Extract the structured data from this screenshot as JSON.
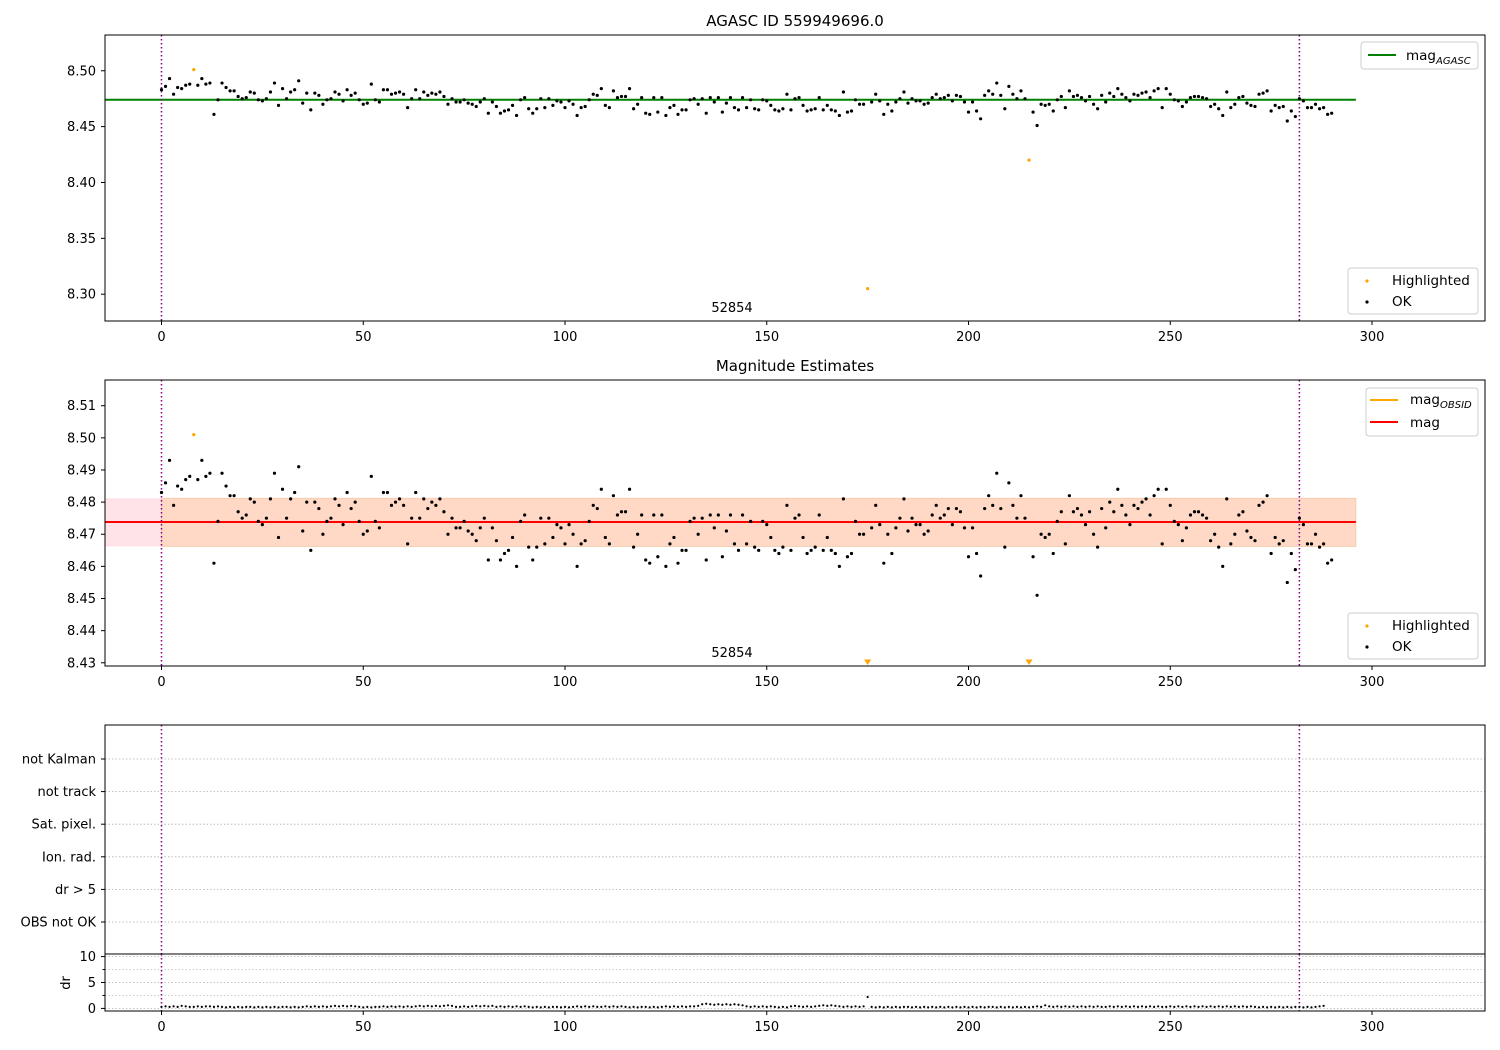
{
  "colors": {
    "ok": "#000000",
    "highlighted": "#ffa500",
    "agasc_line": "#008000",
    "mag_line": "#ff0000",
    "obsid_line": "#ffa500",
    "band_fill": "#ffc0cb",
    "band_inner": "#ffd6c0",
    "edge_line": "#800080",
    "grid": "#b0b0b0"
  },
  "chart_data": [
    {
      "type": "scatter",
      "title": "AGASC ID 559949696.0",
      "annotation": "52854",
      "xlim": [
        -14,
        328
      ],
      "ylim": [
        8.276,
        8.532
      ],
      "xticks": [
        "0",
        "50",
        "100",
        "150",
        "200",
        "250",
        "300"
      ],
      "yticks": [
        "8.30",
        "8.35",
        "8.40",
        "8.45",
        "8.50"
      ],
      "ref_line": {
        "name": "mag",
        "subscript": "AGASC",
        "y": 8.474,
        "x_range": [
          -14,
          296
        ]
      },
      "vertical_lines": [
        0,
        282
      ],
      "legend_top": [
        {
          "label": "mag",
          "subscript": "AGASC"
        }
      ],
      "legend_bottom": [
        {
          "label": "Highlighted"
        },
        {
          "label": "OK"
        }
      ],
      "highlighted": [
        {
          "x": 8,
          "y": 8.501
        },
        {
          "x": 175,
          "y": 8.305
        },
        {
          "x": 215,
          "y": 8.42
        }
      ],
      "series": [
        {
          "name": "OK",
          "y_from_shared": true
        }
      ]
    },
    {
      "type": "scatter",
      "title": "Magnitude Estimates",
      "annotation": "52854",
      "xlim": [
        -14,
        328
      ],
      "ylim": [
        8.429,
        8.518
      ],
      "xticks": [
        "0",
        "50",
        "100",
        "150",
        "200",
        "250",
        "300"
      ],
      "yticks": [
        "8.43",
        "8.44",
        "8.45",
        "8.46",
        "8.47",
        "8.48",
        "8.49",
        "8.50",
        "8.51"
      ],
      "mag_line": {
        "name": "mag",
        "y": 8.4738,
        "band": [
          8.4662,
          8.4812
        ],
        "x_range": [
          -14,
          296
        ]
      },
      "obsid_band": {
        "name": "mag",
        "subscript": "OBSID",
        "band": [
          8.4662,
          8.4812
        ],
        "x_range": [
          0,
          296
        ]
      },
      "vertical_lines": [
        0,
        282
      ],
      "legend_top": [
        {
          "label": "mag",
          "subscript": "OBSID"
        },
        {
          "label": "mag"
        }
      ],
      "legend_bottom": [
        {
          "label": "Highlighted"
        },
        {
          "label": "OK"
        }
      ],
      "highlighted": [
        {
          "x": 8,
          "y": 8.501
        }
      ],
      "out_of_range_markers": [
        175,
        215
      ],
      "series": [
        {
          "name": "OK",
          "y_from_shared": true
        }
      ]
    },
    {
      "type": "scatter",
      "title": "",
      "xlim": [
        -14,
        328
      ],
      "categories": [
        "OBS not OK",
        "dr > 5",
        "Ion. rad.",
        "Sat. pixel.",
        "not track",
        "not Kalman"
      ],
      "vertical_lines": [
        0,
        282
      ],
      "flagged": []
    },
    {
      "type": "scatter",
      "title": "",
      "ylabel": "dr",
      "xlim": [
        -14,
        328
      ],
      "ylim": [
        -0.5,
        10.5
      ],
      "xticks": [
        "0",
        "50",
        "100",
        "150",
        "200",
        "250",
        "300"
      ],
      "yticks": [
        "0",
        "5",
        "10"
      ],
      "vertical_lines": [
        0,
        282
      ],
      "series": [
        {
          "name": "dr",
          "y_from_shared": true
        }
      ]
    }
  ],
  "shared_series": {
    "mag_ok": [
      8.483,
      8.486,
      8.493,
      8.479,
      8.485,
      8.484,
      8.487,
      8.488,
      8.501,
      8.487,
      8.493,
      8.488,
      8.489,
      8.461,
      8.474,
      8.489,
      8.485,
      8.482,
      8.482,
      8.477,
      8.475,
      8.476,
      8.481,
      8.48,
      8.474,
      8.473,
      8.475,
      8.481,
      8.489,
      8.469,
      8.484,
      8.475,
      8.481,
      8.483,
      8.491,
      8.471,
      8.48,
      8.465,
      8.48,
      8.478,
      8.47,
      8.474,
      8.475,
      8.481,
      8.479,
      8.473,
      8.483,
      8.478,
      8.48,
      8.474,
      8.47,
      8.471,
      8.488,
      8.474,
      8.472,
      8.483,
      8.483,
      8.479,
      8.48,
      8.481,
      8.479,
      8.467,
      8.475,
      8.483,
      8.475,
      8.481,
      8.478,
      8.48,
      8.479,
      8.481,
      8.477,
      8.47,
      8.475,
      8.472,
      8.472,
      8.474,
      8.471,
      8.47,
      8.468,
      8.472,
      8.475,
      8.462,
      8.472,
      8.468,
      8.462,
      8.464,
      8.465,
      8.469,
      8.46,
      8.474,
      8.476,
      8.466,
      8.462,
      8.466,
      8.475,
      8.467,
      8.475,
      8.469,
      8.473,
      8.472,
      8.467,
      8.473,
      8.47,
      8.46,
      8.467,
      8.468,
      8.474,
      8.479,
      8.478,
      8.484,
      8.469,
      8.467,
      8.482,
      8.476,
      8.477,
      8.477,
      8.484,
      8.466,
      8.47,
      8.476,
      8.462,
      8.461,
      8.476,
      8.463,
      8.476,
      8.46,
      8.467,
      8.469,
      8.461,
      8.465,
      8.465,
      8.474,
      8.475,
      8.47,
      8.475,
      8.462,
      8.476,
      8.472,
      8.476,
      8.463,
      8.471,
      8.476,
      8.467,
      8.465,
      8.476,
      8.467,
      8.474,
      8.466,
      8.465,
      8.474,
      8.473,
      8.469,
      8.465,
      8.464,
      8.466,
      8.479,
      8.465,
      8.475,
      8.476,
      8.469,
      8.464,
      8.465,
      8.466,
      8.476,
      8.465,
      8.469,
      8.465,
      8.464,
      8.46,
      8.481,
      8.463,
      8.464,
      8.474,
      8.47,
      8.47,
      8.474,
      8.472,
      8.479,
      8.473,
      8.461,
      8.47,
      8.464,
      8.472,
      8.475,
      8.481,
      8.471,
      8.475,
      8.473,
      8.473,
      8.47,
      8.471,
      8.476,
      8.479,
      8.475,
      8.476,
      8.478,
      8.473,
      8.478,
      8.477,
      8.472,
      8.463,
      8.472,
      8.464,
      8.457,
      8.478,
      8.482,
      8.479,
      8.489,
      8.478,
      8.466,
      8.486,
      8.479,
      8.475,
      8.482,
      8.475,
      8.474,
      8.463,
      8.451,
      8.47,
      8.469,
      8.47,
      8.464,
      8.474,
      8.477,
      8.467,
      8.482,
      8.477,
      8.478,
      8.476,
      8.473,
      8.477,
      8.47,
      8.466,
      8.478,
      8.472,
      8.48,
      8.477,
      8.484,
      8.479,
      8.476,
      8.473,
      8.479,
      8.478,
      8.48,
      8.481,
      8.476,
      8.482,
      8.484,
      8.467,
      8.484,
      8.479,
      8.474,
      8.473,
      8.468,
      8.472,
      8.476,
      8.477,
      8.477,
      8.476,
      8.475,
      8.468,
      8.47,
      8.466,
      8.46,
      8.481,
      8.467,
      8.47,
      8.476,
      8.477,
      8.471,
      8.469,
      8.468,
      8.479,
      8.48,
      8.482,
      8.464,
      8.469,
      8.467,
      8.468,
      8.455,
      8.464,
      8.459,
      8.475,
      8.473,
      8.467,
      8.467,
      8.47,
      8.466,
      8.467,
      8.461,
      8.462
    ],
    "dr": [
      0.3,
      0.4,
      0.3,
      0.4,
      0.3,
      0.5,
      0.4,
      0.3,
      0.3,
      0.4,
      0.3,
      0.4,
      0.4,
      0.3,
      0.4,
      0.3,
      0.2,
      0.3,
      0.2,
      0.3,
      0.2,
      0.3,
      0.3,
      0.2,
      0.3,
      0.2,
      0.3,
      0.2,
      0.3,
      0.2,
      0.3,
      0.3,
      0.2,
      0.3,
      0.2,
      0.3,
      0.4,
      0.3,
      0.4,
      0.3,
      0.4,
      0.3,
      0.4,
      0.5,
      0.4,
      0.5,
      0.4,
      0.5,
      0.4,
      0.3,
      0.2,
      0.3,
      0.2,
      0.3,
      0.3,
      0.4,
      0.3,
      0.4,
      0.3,
      0.4,
      0.3,
      0.4,
      0.3,
      0.4,
      0.5,
      0.4,
      0.5,
      0.4,
      0.5,
      0.4,
      0.5,
      0.6,
      0.5,
      0.3,
      0.3,
      0.4,
      0.3,
      0.4,
      0.5,
      0.4,
      0.5,
      0.4,
      0.5,
      0.3,
      0.4,
      0.3,
      0.4,
      0.3,
      0.4,
      0.3,
      0.4,
      0.3,
      0.2,
      0.3,
      0.2,
      0.3,
      0.2,
      0.3,
      0.3,
      0.2,
      0.3,
      0.2,
      0.3,
      0.4,
      0.3,
      0.4,
      0.3,
      0.4,
      0.3,
      0.3,
      0.4,
      0.3,
      0.4,
      0.3,
      0.4,
      0.3,
      0.2,
      0.3,
      0.2,
      0.3,
      0.3,
      0.2,
      0.3,
      0.2,
      0.3,
      0.4,
      0.3,
      0.4,
      0.3,
      0.4,
      0.3,
      0.4,
      0.4,
      0.5,
      0.8,
      0.9,
      0.8,
      0.7,
      0.8,
      0.7,
      0.8,
      0.7,
      0.8,
      0.7,
      0.6,
      0.4,
      0.3,
      0.4,
      0.3,
      0.4,
      0.3,
      0.4,
      0.3,
      0.2,
      0.3,
      0.2,
      0.4,
      0.5,
      0.4,
      0.3,
      0.4,
      0.3,
      0.4,
      0.5,
      0.6,
      0.5,
      0.6,
      0.5,
      0.4,
      0.3,
      0.4,
      0.3,
      0.4,
      0.3,
      0.4,
      2.2,
      0.3,
      0.2,
      0.3,
      0.2,
      0.3,
      0.2,
      0.3,
      0.2,
      0.3,
      0.3,
      0.2,
      0.3,
      0.2,
      0.3,
      0.2,
      0.3,
      0.2,
      0.3,
      0.2,
      0.3,
      0.2,
      0.3,
      0.2,
      0.3,
      0.2,
      0.3,
      0.2,
      0.3,
      0.2,
      0.3,
      0.3,
      0.2,
      0.3,
      0.2,
      0.3,
      0.2,
      0.3,
      0.2,
      0.3,
      0.2,
      0.3,
      0.4,
      0.3,
      0.6,
      0.4,
      0.3,
      0.4,
      0.3,
      0.4,
      0.3,
      0.4,
      0.3,
      0.4,
      0.3,
      0.4,
      0.3,
      0.4,
      0.3,
      0.3,
      0.4,
      0.3,
      0.4,
      0.3,
      0.4,
      0.3,
      0.4,
      0.3,
      0.4,
      0.3,
      0.4,
      0.3,
      0.4,
      0.3,
      0.3,
      0.4,
      0.3,
      0.4,
      0.3,
      0.4,
      0.3,
      0.4,
      0.3,
      0.4,
      0.3,
      0.4,
      0.3,
      0.4,
      0.3,
      0.4,
      0.3,
      0.4,
      0.3,
      0.4,
      0.3,
      0.4,
      0.3,
      0.2,
      0.3,
      0.2,
      0.3,
      0.2,
      0.3,
      0.2,
      0.3,
      0.2,
      0.3,
      0.3,
      0.2,
      0.3,
      0.2,
      0.3,
      0.4,
      0.5
    ]
  }
}
